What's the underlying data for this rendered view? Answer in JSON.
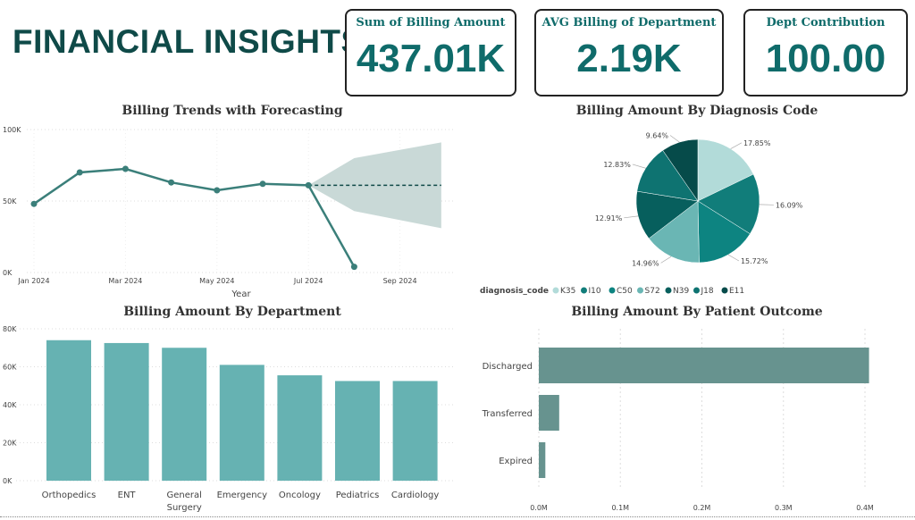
{
  "header": {
    "title": "FINANCIAL INSIGHTS"
  },
  "kpis": [
    {
      "label": "Sum of Billing Amount",
      "value": "437.01K"
    },
    {
      "label": "AVG Billing of Department",
      "value": "2.19K"
    },
    {
      "label": "Dept Contribution",
      "value": "100.00"
    }
  ],
  "colors": {
    "teal_dark": "#0f4a48",
    "line": "#3b7f7a",
    "bar": "#66b2b2",
    "hbar": "#67938f",
    "band": "#c9d9d7"
  },
  "chart_data": [
    {
      "type": "line",
      "title": "Billing Trends with Forecasting",
      "xlabel": "Year",
      "ylim": [
        0,
        100000
      ],
      "y_ticks": [
        "0K",
        "50K",
        "100K"
      ],
      "x_ticks": [
        "Jan 2024",
        "Mar 2024",
        "May 2024",
        "Jul 2024",
        "Sep 2024"
      ],
      "series": [
        {
          "x": [
            "2024-01",
            "2024-02",
            "2024-03",
            "2024-04",
            "2024-05",
            "2024-06",
            "2024-07",
            "2024-08"
          ],
          "values": [
            48000,
            70000,
            72500,
            63000,
            57500,
            62000,
            61000,
            4000
          ]
        }
      ],
      "forecast": {
        "x": [
          "2024-07",
          "2024-08",
          "2024-10"
        ],
        "values": [
          61000,
          61000,
          61000
        ],
        "upper": [
          61000,
          80000,
          91000
        ],
        "lower": [
          61000,
          43000,
          31000
        ]
      },
      "grid": true
    },
    {
      "type": "pie",
      "title": "Billing Amount By Diagnosis Code",
      "legend_title": "diagnosis_code",
      "legend": "bottom-left",
      "slices": [
        {
          "name": "K35",
          "percent": 17.85,
          "label": "17.85%",
          "color": "#b2dbd9"
        },
        {
          "name": "I10",
          "percent": 16.09,
          "label": "16.09%",
          "color": "#117d7a"
        },
        {
          "name": "C50",
          "percent": 15.72,
          "label": "15.72%",
          "color": "#0d8481"
        },
        {
          "name": "S72",
          "percent": 14.96,
          "label": "14.96%",
          "color": "#6ab6b4"
        },
        {
          "name": "N39",
          "percent": 12.91,
          "label": "12.91%",
          "color": "#075f5d"
        },
        {
          "name": "J18",
          "percent": 12.83,
          "label": "12.83%",
          "color": "#0e7371"
        },
        {
          "name": "E11",
          "percent": 9.64,
          "label": "9.64%",
          "color": "#064b4a"
        }
      ]
    },
    {
      "type": "bar",
      "title": "Billing Amount By Department",
      "categories": [
        "Orthopedics",
        "ENT",
        "General Surgery",
        "Emergency",
        "Oncology",
        "Pediatrics",
        "Cardiology"
      ],
      "values": [
        74000,
        72500,
        70000,
        61000,
        55500,
        52500,
        52500
      ],
      "ylim": [
        0,
        80000
      ],
      "y_ticks": [
        "0K",
        "20K",
        "40K",
        "60K",
        "80K"
      ],
      "grid": true
    },
    {
      "type": "bar",
      "orientation": "horizontal",
      "title": "Billing Amount By Patient Outcome",
      "categories": [
        "Discharged",
        "Transferred",
        "Expired"
      ],
      "values": [
        405000,
        25000,
        8000
      ],
      "xlim": [
        0,
        400000
      ],
      "x_ticks": [
        "0.0M",
        "0.1M",
        "0.2M",
        "0.3M",
        "0.4M"
      ],
      "grid": true
    }
  ]
}
